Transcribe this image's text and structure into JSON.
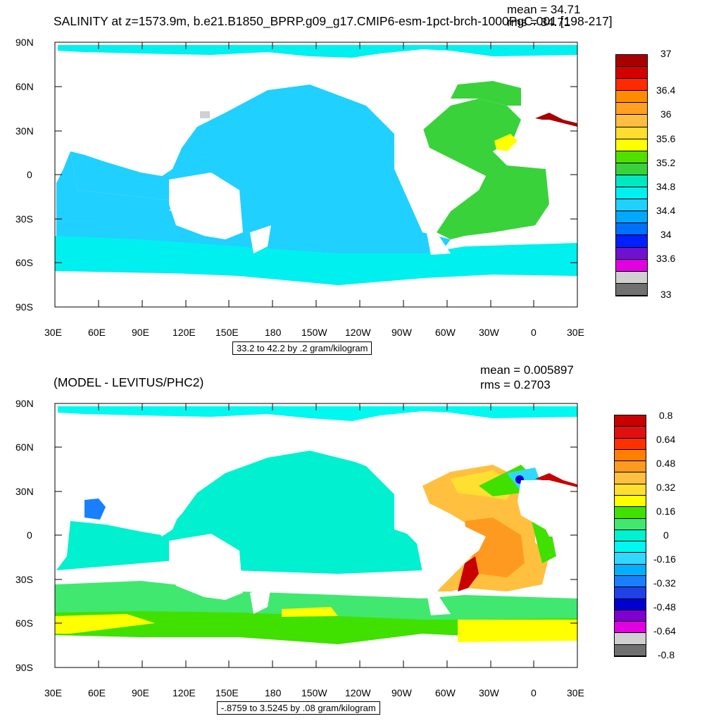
{
  "panels": [
    {
      "title": "SALINITY at z=1573.9m, b.e21.B1850_BPRP.g09_g17.CMIP6-esm-1pct-brch-1000PgC.001 [198-217]",
      "mean_label": "mean = 34.71",
      "rms_label": "rms = 34.71",
      "caption": "33.2 to 42.2 by .2 gram/kilogram",
      "lat_labels": [
        "90N",
        "60N",
        "30N",
        "0",
        "30S",
        "60S",
        "90S"
      ],
      "lon_labels": [
        "30E",
        "60E",
        "90E",
        "120E",
        "150E",
        "180",
        "150W",
        "120W",
        "90W",
        "60W",
        "30W",
        "0",
        "30E"
      ],
      "colorbar_labels": [
        "37",
        "36.4",
        "36",
        "35.6",
        "35.2",
        "34.8",
        "34.4",
        "34",
        "33.6",
        "33"
      ],
      "colorbar_colors": [
        "#a80000",
        "#d40000",
        "#ff2a00",
        "#ff8c00",
        "#ffa020",
        "#ffbe40",
        "#ffdc30",
        "#ffff00",
        "#50e000",
        "#3ad23a",
        "#00e8c0",
        "#00f0f0",
        "#20d0ff",
        "#00a8ff",
        "#0070ff",
        "#0020ff",
        "#7010d0",
        "#e000e0",
        "#d0d0d0",
        "#707070"
      ]
    },
    {
      "title": "(MODEL - LEVITUS/PHC2)",
      "mean_label": "mean = 0.005897",
      "rms_label": "rms = 0.2703",
      "caption": "-.8759 to 3.5245 by .08 gram/kilogram",
      "lat_labels": [
        "90N",
        "60N",
        "30N",
        "0",
        "30S",
        "60S",
        "90S"
      ],
      "lon_labels": [
        "30E",
        "60E",
        "90E",
        "120E",
        "150E",
        "180",
        "150W",
        "120W",
        "90W",
        "60W",
        "30W",
        "0",
        "30E"
      ],
      "colorbar_labels": [
        "0.8",
        "0.64",
        "0.48",
        "0.32",
        "0.16",
        "0",
        "-0.16",
        "-0.32",
        "-0.48",
        "-0.64",
        "-0.8"
      ],
      "colorbar_colors": [
        "#c80000",
        "#e01010",
        "#ff3000",
        "#ff8000",
        "#ff9a20",
        "#ffc040",
        "#ffe030",
        "#ffff00",
        "#40e000",
        "#40e870",
        "#00f0d0",
        "#00f8f0",
        "#30d8ff",
        "#00b0ff",
        "#1880ff",
        "#2040e8",
        "#0000d0",
        "#8000d0",
        "#e000e0",
        "#d0d0d0",
        "#707070"
      ]
    }
  ]
}
